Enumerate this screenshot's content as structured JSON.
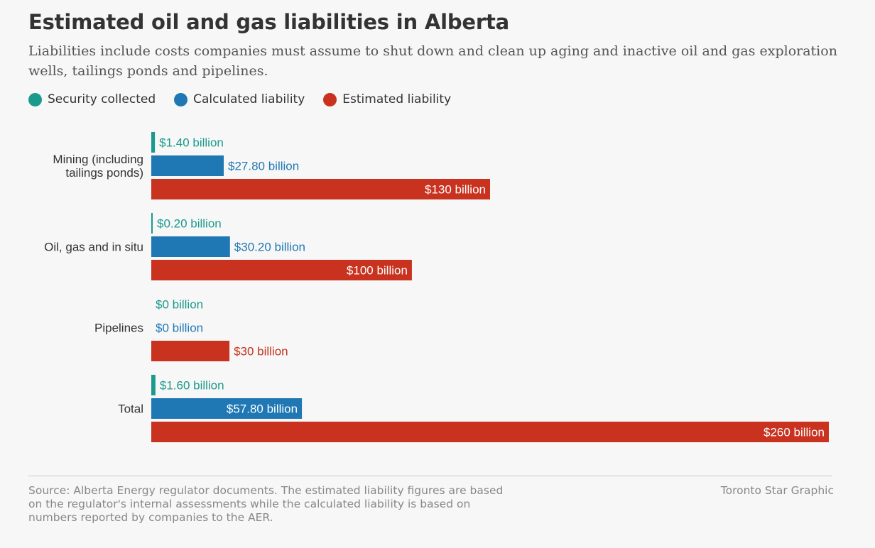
{
  "header": {
    "title": "Estimated oil and gas liabilities in Alberta",
    "subtitle": "Liabilities include costs companies must assume to shut down and clean up aging and inactive oil and gas exploration wells, tailings ponds and pipelines."
  },
  "legend": [
    {
      "label": "Security collected",
      "color": "#1a9a8c"
    },
    {
      "label": "Calculated liability",
      "color": "#1f78b4"
    },
    {
      "label": "Estimated liability",
      "color": "#c8321f"
    }
  ],
  "chart_data": {
    "type": "bar",
    "orientation": "horizontal",
    "categories": [
      [
        "Mining (including",
        "tailings ponds)"
      ],
      [
        "Oil, gas and in situ"
      ],
      [
        "Pipelines"
      ],
      [
        "Total"
      ]
    ],
    "series": [
      {
        "name": "Security collected",
        "color": "#1a9a8c",
        "values": [
          1.4,
          0.2,
          0,
          1.6
        ],
        "labels": [
          "$1.40 billion",
          "$0.20 billion",
          "$0 billion",
          "$1.60 billion"
        ]
      },
      {
        "name": "Calculated liability",
        "color": "#1f78b4",
        "values": [
          27.8,
          30.2,
          0,
          57.8
        ],
        "labels": [
          "$27.80 billion",
          "$30.20 billion",
          "$0 billion",
          "$57.80 billion"
        ]
      },
      {
        "name": "Estimated liability",
        "color": "#c8321f",
        "values": [
          130,
          100,
          30,
          260
        ],
        "labels": [
          "$130 billion",
          "$100 billion",
          "$30 billion",
          "$260 billion"
        ]
      }
    ],
    "xlim": [
      0,
      260
    ],
    "grid": false,
    "legend_position": "top-left"
  },
  "footer": {
    "source": "Source: Alberta Energy regulator documents. The estimated liability figures are based on the regulator's internal assessments while the calculated liability is based on numbers reported by companies to the AER.",
    "credit": "Toronto Star Graphic"
  }
}
